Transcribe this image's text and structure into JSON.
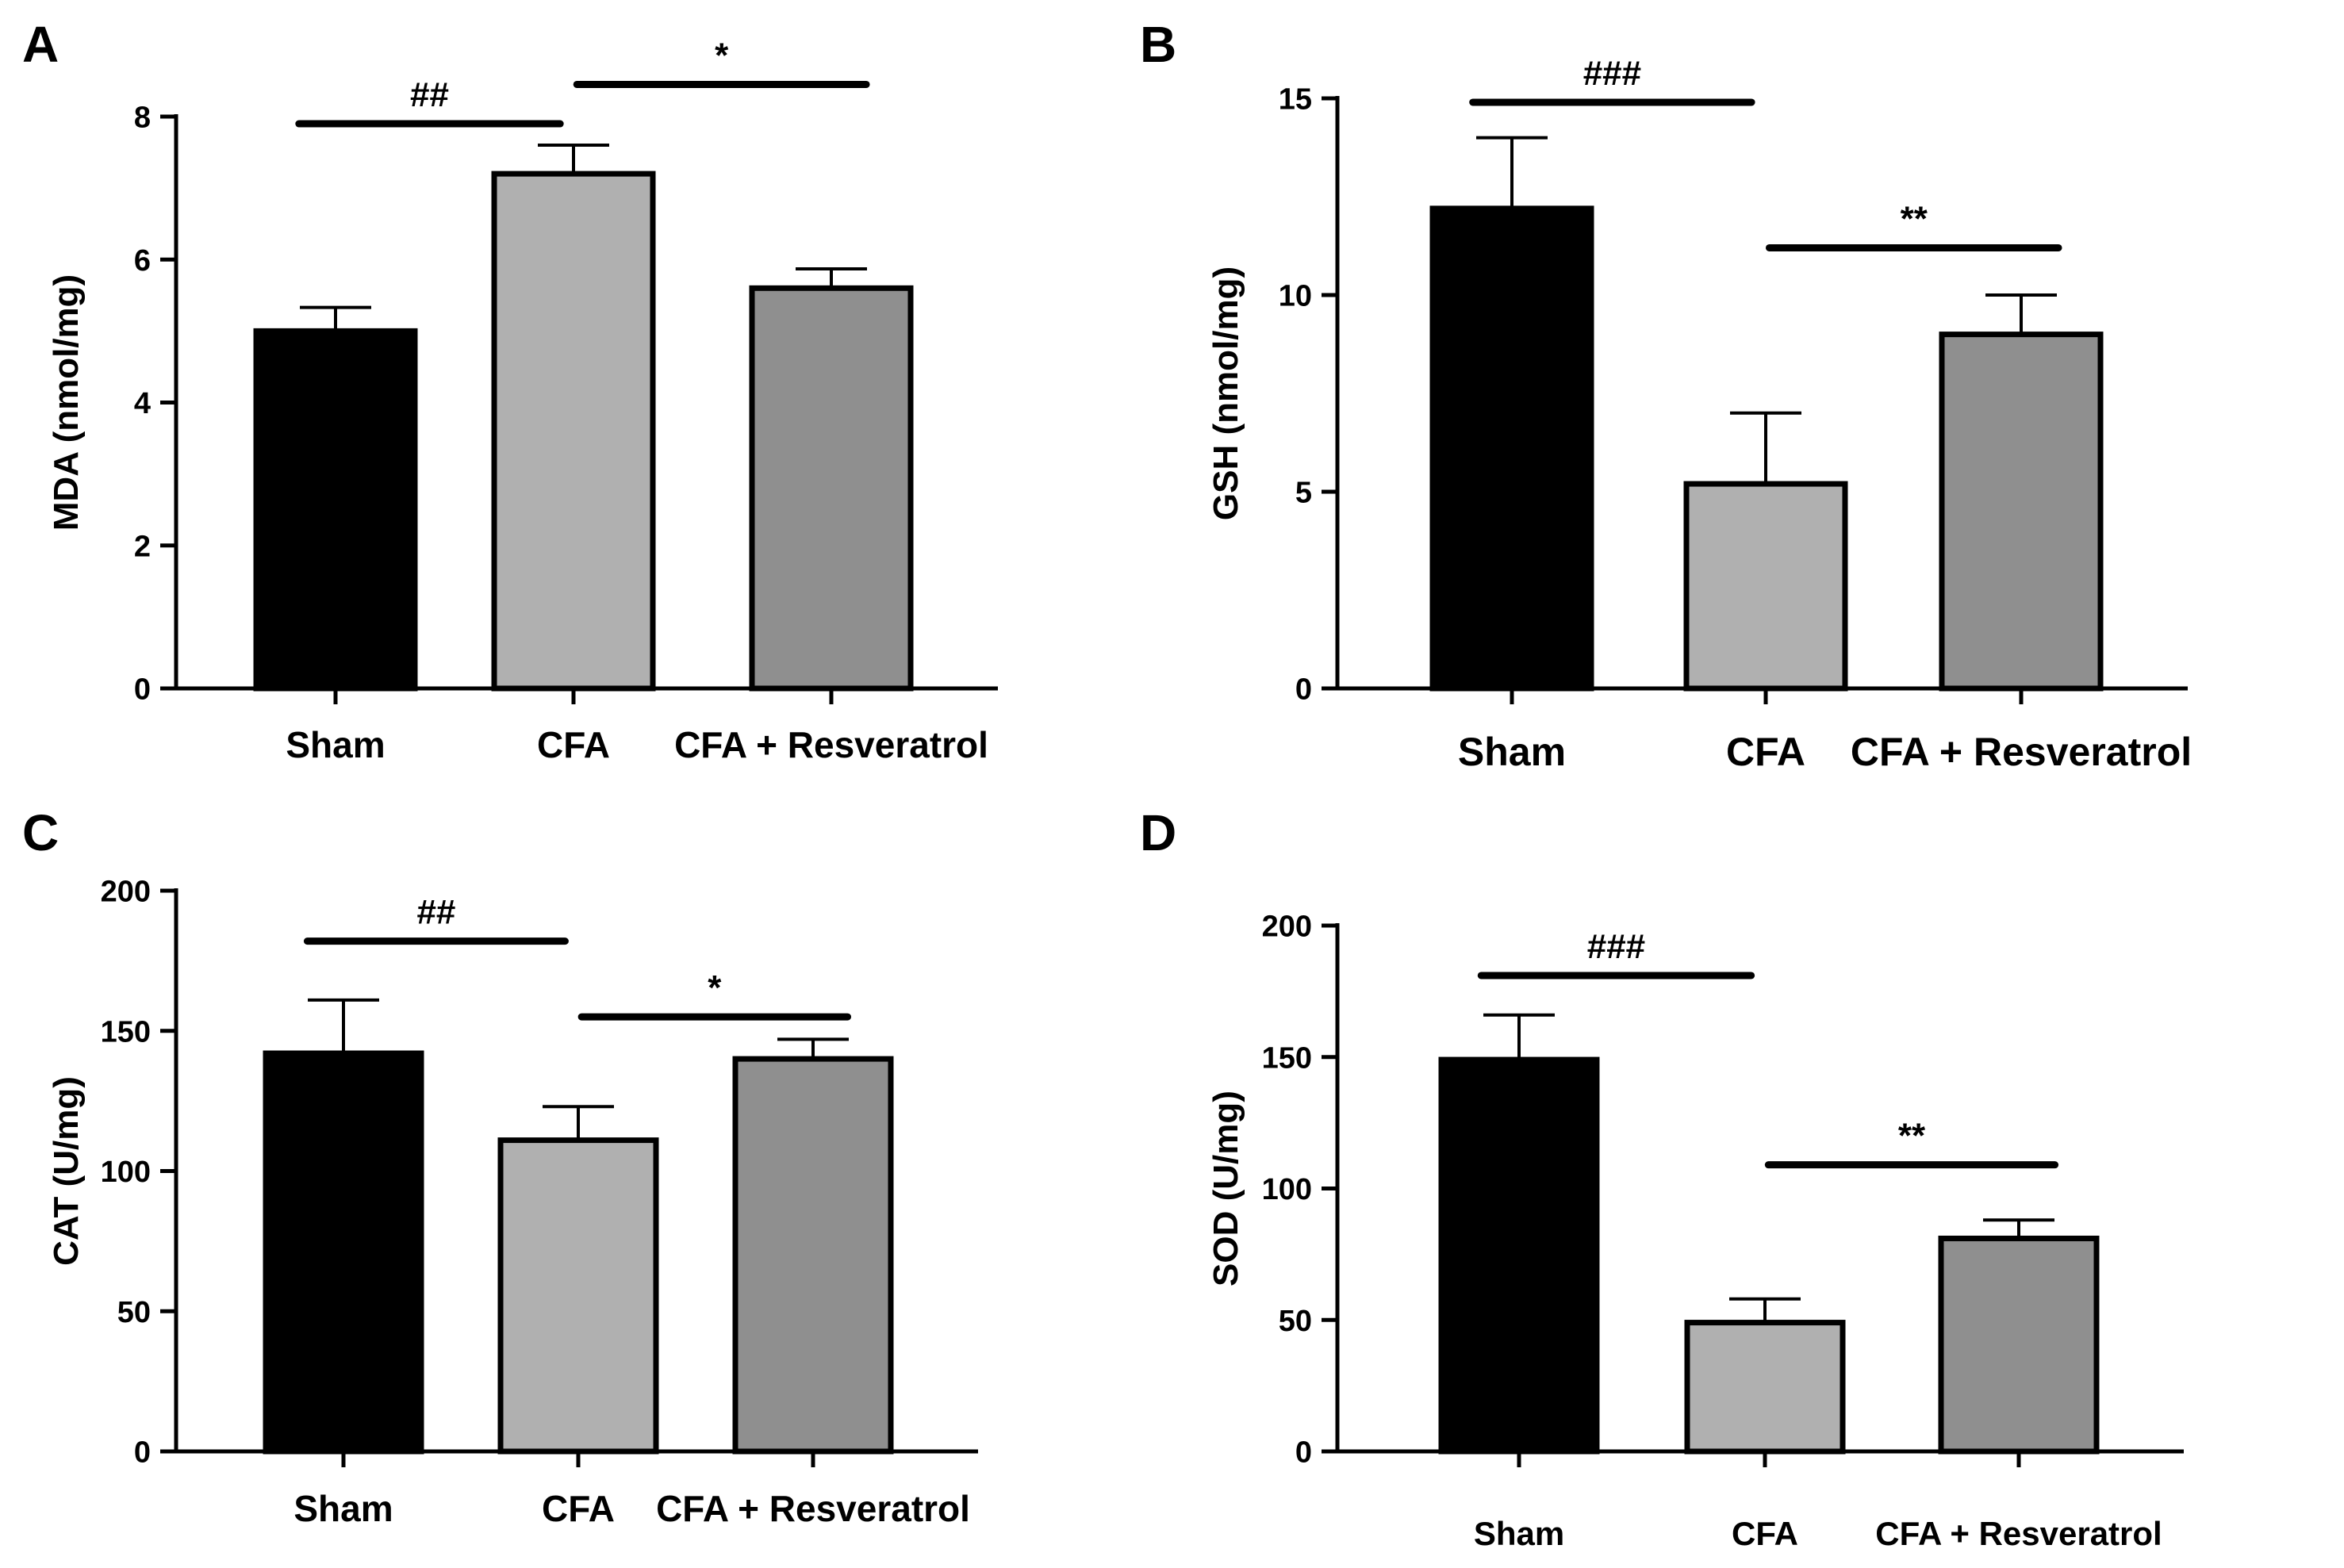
{
  "chart_data": [
    {
      "type": "bar",
      "panel_label": "A",
      "categories": [
        "Sham",
        "CFA",
        "CFA + Resveratrol"
      ],
      "values": [
        5.0,
        7.2,
        5.6
      ],
      "errors": [
        0.33,
        0.4,
        0.27
      ],
      "colors": [
        "#000000",
        "#b0b0b0",
        "#8f8f8f"
      ],
      "ylabel": "MDA (nmol/mg)",
      "ylim": [
        0,
        8
      ],
      "yticks": [
        "0",
        "2",
        "4",
        "6",
        "8"
      ],
      "yticks_values": [
        0,
        2,
        4,
        6,
        8
      ],
      "significance": [
        {
          "from": 0,
          "to": 1,
          "label": "##",
          "y": 7.9
        },
        {
          "from": 1,
          "to": 2,
          "label": "*",
          "y": 8.45
        }
      ]
    },
    {
      "type": "bar",
      "panel_label": "B",
      "categories": [
        "Sham",
        "CFA",
        "CFA + Resveratrol"
      ],
      "values": [
        12.2,
        5.2,
        9.0
      ],
      "errors": [
        1.8,
        1.8,
        1.0
      ],
      "colors": [
        "#000000",
        "#b0b0b0",
        "#8f8f8f"
      ],
      "ylabel": "GSH (nmol/mg)",
      "ylim": [
        0,
        15
      ],
      "yticks": [
        "0",
        "5",
        "10",
        "15"
      ],
      "yticks_values": [
        0,
        5,
        10,
        15
      ],
      "significance": [
        {
          "from": 0,
          "to": 1,
          "label": "###",
          "y": 14.9
        },
        {
          "from": 1,
          "to": 2,
          "label": "**",
          "y": 11.2
        }
      ]
    },
    {
      "type": "bar",
      "panel_label": "C",
      "categories": [
        "Sham",
        "CFA",
        "CFA + Resveratrol"
      ],
      "values": [
        142,
        111,
        140
      ],
      "errors": [
        19,
        12,
        7
      ],
      "colors": [
        "#000000",
        "#b0b0b0",
        "#8f8f8f"
      ],
      "ylabel": "CAT (U/mg)",
      "ylim": [
        0,
        200
      ],
      "yticks": [
        "0",
        "50",
        "100",
        "150",
        "200"
      ],
      "yticks_values": [
        0,
        50,
        100,
        150,
        200
      ],
      "significance": [
        {
          "from": 0,
          "to": 1,
          "label": "##",
          "y": 182
        },
        {
          "from": 1,
          "to": 2,
          "label": "*",
          "y": 155
        }
      ]
    },
    {
      "type": "bar",
      "panel_label": "D",
      "categories": [
        "Sham",
        "CFA",
        "CFA + Resveratrol"
      ],
      "values": [
        149,
        49,
        81
      ],
      "errors": [
        17,
        9,
        7
      ],
      "colors": [
        "#000000",
        "#b0b0b0",
        "#8f8f8f"
      ],
      "ylabel": "SOD (U/mg)",
      "ylim": [
        0,
        200
      ],
      "yticks": [
        "0",
        "50",
        "100",
        "150",
        "200"
      ],
      "yticks_values": [
        0,
        50,
        100,
        150,
        200
      ],
      "significance": [
        {
          "from": 0,
          "to": 1,
          "label": "###",
          "y": 181
        },
        {
          "from": 1,
          "to": 2,
          "label": "**",
          "y": 109
        }
      ]
    }
  ]
}
